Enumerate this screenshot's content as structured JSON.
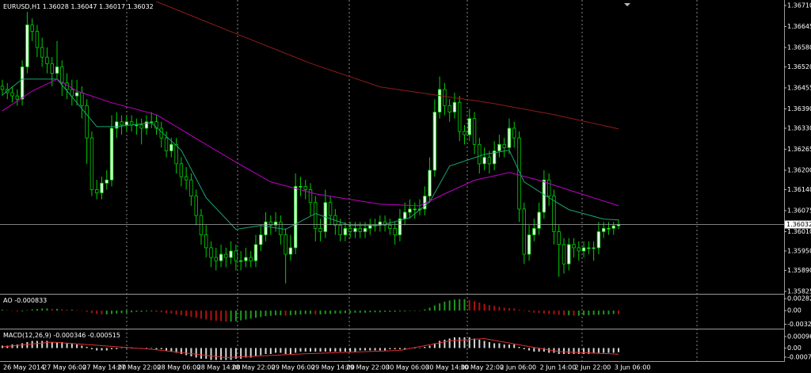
{
  "chart_data": {
    "type": "candlestick",
    "title": "EURUSD,H1",
    "categories": [
      "26 May 2014",
      null,
      null,
      null,
      null,
      null,
      null,
      null,
      "27 May 06:00",
      null,
      null,
      null,
      null,
      null,
      null,
      null,
      "27 May 14:00",
      null,
      null,
      null,
      null,
      null,
      null,
      "27 May 22:00",
      null,
      null,
      null,
      null,
      null,
      null,
      null,
      "28 May 06:00",
      null,
      null,
      null,
      null,
      null,
      null,
      null,
      "28 May 14:00",
      null,
      null,
      null,
      null,
      null,
      null,
      "28 May 22:00",
      null,
      null,
      null,
      null,
      null,
      null,
      null,
      "29 May 06:00",
      null,
      null,
      null,
      null,
      null,
      null,
      null,
      "29 May 14:00",
      null,
      null,
      null,
      null,
      null,
      null,
      "29 May 22:00",
      null,
      null,
      null,
      null,
      null,
      null,
      null,
      "30 May 06:00",
      null,
      null,
      null,
      null,
      null,
      null,
      null,
      "30 May 14:00",
      null,
      null,
      null,
      null,
      null,
      null,
      "30 May 22:00",
      null,
      null,
      null,
      null,
      null,
      null,
      null,
      "2 Jun 06:00",
      null,
      null,
      null,
      null,
      null,
      null,
      null,
      "2 Jun 14:00",
      null,
      null,
      null,
      null,
      null,
      null,
      "2 Jun 22:00",
      null,
      null,
      null,
      null,
      null,
      null,
      null,
      "3 Jun 06:00",
      null
    ],
    "candles": [
      [
        1.3646,
        1.3648,
        1.3643,
        1.3645
      ],
      [
        1.3645,
        1.3647,
        1.3642,
        1.3644
      ],
      [
        1.3644,
        1.3646,
        1.3641,
        1.3643
      ],
      [
        1.3643,
        1.3645,
        1.364,
        1.3642
      ],
      [
        1.3642,
        1.3654,
        1.364,
        1.3652
      ],
      [
        1.3652,
        1.3669,
        1.365,
        1.3665
      ],
      [
        1.3665,
        1.3667,
        1.366,
        1.3663
      ],
      [
        1.3663,
        1.3665,
        1.3655,
        1.3658
      ],
      [
        1.3658,
        1.3661,
        1.3652,
        1.3655
      ],
      [
        1.3655,
        1.3658,
        1.365,
        1.3653
      ],
      [
        1.3653,
        1.3655,
        1.3646,
        1.365
      ],
      [
        1.365,
        1.366,
        1.3648,
        1.3652
      ],
      [
        1.3652,
        1.3654,
        1.3643,
        1.3647
      ],
      [
        1.3647,
        1.365,
        1.3642,
        1.3645
      ],
      [
        1.3645,
        1.3648,
        1.364,
        1.3643
      ],
      [
        1.3643,
        1.3648,
        1.364,
        1.3644
      ],
      [
        1.3644,
        1.3646,
        1.3636,
        1.364
      ],
      [
        1.364,
        1.3642,
        1.3622,
        1.363
      ],
      [
        1.363,
        1.3632,
        1.3612,
        1.3614
      ],
      [
        1.3614,
        1.3617,
        1.3611,
        1.3613
      ],
      [
        1.3613,
        1.3618,
        1.3611,
        1.3616
      ],
      [
        1.3616,
        1.362,
        1.3614,
        1.3617
      ],
      [
        1.3617,
        1.3637,
        1.3615,
        1.3633
      ],
      [
        1.3633,
        1.3638,
        1.363,
        1.3635
      ],
      [
        1.3635,
        1.3637,
        1.3631,
        1.3634
      ],
      [
        1.3634,
        1.3637,
        1.3632,
        1.3635
      ],
      [
        1.3635,
        1.3637,
        1.3632,
        1.3634
      ],
      [
        1.3634,
        1.3636,
        1.3631,
        1.3634
      ],
      [
        1.3634,
        1.3636,
        1.3628,
        1.3633
      ],
      [
        1.3633,
        1.3637,
        1.3631,
        1.3635
      ],
      [
        1.3635,
        1.3638,
        1.3633,
        1.3635
      ],
      [
        1.3635,
        1.3637,
        1.3631,
        1.3633
      ],
      [
        1.3633,
        1.3635,
        1.3627,
        1.363
      ],
      [
        1.363,
        1.3632,
        1.3624,
        1.3626
      ],
      [
        1.3626,
        1.363,
        1.3624,
        1.3628
      ],
      [
        1.3628,
        1.363,
        1.3619,
        1.3622
      ],
      [
        1.3622,
        1.3624,
        1.3615,
        1.3618
      ],
      [
        1.3618,
        1.3621,
        1.3614,
        1.3617
      ],
      [
        1.3617,
        1.3619,
        1.3609,
        1.3612
      ],
      [
        1.3612,
        1.3614,
        1.3603,
        1.3606
      ],
      [
        1.3606,
        1.3608,
        1.3597,
        1.36
      ],
      [
        1.36,
        1.3603,
        1.3593,
        1.3596
      ],
      [
        1.3596,
        1.3598,
        1.359,
        1.3593
      ],
      [
        1.3593,
        1.3596,
        1.3589,
        1.3592
      ],
      [
        1.3592,
        1.3597,
        1.359,
        1.3594
      ],
      [
        1.3594,
        1.3596,
        1.359,
        1.3593
      ],
      [
        1.3593,
        1.3598,
        1.3591,
        1.3595
      ],
      [
        1.3595,
        1.3597,
        1.3589,
        1.3592
      ],
      [
        1.3592,
        1.3595,
        1.3589,
        1.3592
      ],
      [
        1.3592,
        1.3596,
        1.359,
        1.3593
      ],
      [
        1.3593,
        1.3595,
        1.359,
        1.3592
      ],
      [
        1.3592,
        1.36,
        1.359,
        1.3597
      ],
      [
        1.3597,
        1.3603,
        1.3595,
        1.36
      ],
      [
        1.36,
        1.3607,
        1.3598,
        1.3604
      ],
      [
        1.3604,
        1.3606,
        1.36,
        1.3603
      ],
      [
        1.3603,
        1.3607,
        1.3601,
        1.3604
      ],
      [
        1.3604,
        1.3606,
        1.3597,
        1.36
      ],
      [
        1.36,
        1.3602,
        1.3585,
        1.3594
      ],
      [
        1.3594,
        1.36,
        1.3592,
        1.3596
      ],
      [
        1.3596,
        1.3619,
        1.3594,
        1.3615
      ],
      [
        1.3615,
        1.3618,
        1.3612,
        1.3615
      ],
      [
        1.3615,
        1.3617,
        1.3611,
        1.3614
      ],
      [
        1.3614,
        1.3616,
        1.3606,
        1.361
      ],
      [
        1.361,
        1.3612,
        1.3598,
        1.3602
      ],
      [
        1.3602,
        1.3605,
        1.3598,
        1.3601
      ],
      [
        1.3601,
        1.3614,
        1.3599,
        1.361
      ],
      [
        1.361,
        1.3612,
        1.3603,
        1.3606
      ],
      [
        1.3606,
        1.3608,
        1.36,
        1.3603
      ],
      [
        1.3603,
        1.3605,
        1.3598,
        1.36
      ],
      [
        1.36,
        1.3604,
        1.3598,
        1.3602
      ],
      [
        1.3602,
        1.3604,
        1.3599,
        1.3601
      ],
      [
        1.3601,
        1.3604,
        1.3599,
        1.3602
      ],
      [
        1.3602,
        1.3604,
        1.3599,
        1.3601
      ],
      [
        1.3601,
        1.3604,
        1.3599,
        1.3602
      ],
      [
        1.3602,
        1.3605,
        1.36,
        1.3603
      ],
      [
        1.3603,
        1.3605,
        1.3601,
        1.3603
      ],
      [
        1.3603,
        1.3606,
        1.3601,
        1.3604
      ],
      [
        1.3604,
        1.3606,
        1.3601,
        1.3603
      ],
      [
        1.3603,
        1.3605,
        1.36,
        1.3602
      ],
      [
        1.3602,
        1.3604,
        1.3597,
        1.36
      ],
      [
        1.36,
        1.3608,
        1.3598,
        1.3605
      ],
      [
        1.3605,
        1.361,
        1.3603,
        1.3607
      ],
      [
        1.3607,
        1.3611,
        1.3605,
        1.3608
      ],
      [
        1.3608,
        1.361,
        1.3605,
        1.3608
      ],
      [
        1.3608,
        1.3611,
        1.3606,
        1.3608
      ],
      [
        1.3608,
        1.3615,
        1.3606,
        1.3612
      ],
      [
        1.3612,
        1.3624,
        1.361,
        1.362
      ],
      [
        1.362,
        1.3642,
        1.3618,
        1.3638
      ],
      [
        1.3638,
        1.3649,
        1.3636,
        1.3645
      ],
      [
        1.3645,
        1.3647,
        1.3637,
        1.364
      ],
      [
        1.364,
        1.3642,
        1.3635,
        1.3638
      ],
      [
        1.3638,
        1.3644,
        1.3636,
        1.3641
      ],
      [
        1.3641,
        1.3643,
        1.3629,
        1.3632
      ],
      [
        1.3632,
        1.3634,
        1.3628,
        1.3631
      ],
      [
        1.3631,
        1.3639,
        1.3629,
        1.3636
      ],
      [
        1.3636,
        1.3638,
        1.3625,
        1.3628
      ],
      [
        1.3628,
        1.363,
        1.3619,
        1.3622
      ],
      [
        1.3622,
        1.3627,
        1.362,
        1.3624
      ],
      [
        1.3624,
        1.3626,
        1.3619,
        1.3622
      ],
      [
        1.3622,
        1.3629,
        1.362,
        1.3626
      ],
      [
        1.3626,
        1.3631,
        1.3624,
        1.3628
      ],
      [
        1.3628,
        1.363,
        1.3624,
        1.3627
      ],
      [
        1.3627,
        1.3636,
        1.3625,
        1.3633
      ],
      [
        1.3633,
        1.3635,
        1.3627,
        1.363
      ],
      [
        1.363,
        1.3632,
        1.3604,
        1.3608
      ],
      [
        1.3608,
        1.361,
        1.3591,
        1.3594
      ],
      [
        1.3594,
        1.3603,
        1.3592,
        1.36
      ],
      [
        1.36,
        1.3605,
        1.3598,
        1.3602
      ],
      [
        1.3602,
        1.361,
        1.36,
        1.3607
      ],
      [
        1.3607,
        1.362,
        1.3605,
        1.3617
      ],
      [
        1.3617,
        1.3619,
        1.3609,
        1.3612
      ],
      [
        1.3612,
        1.3614,
        1.3597,
        1.3601
      ],
      [
        1.3601,
        1.3603,
        1.3587,
        1.3597
      ],
      [
        1.3597,
        1.3599,
        1.3588,
        1.3591
      ],
      [
        1.3591,
        1.3599,
        1.3589,
        1.3597
      ],
      [
        1.3597,
        1.3599,
        1.3593,
        1.3596
      ],
      [
        1.3596,
        1.3598,
        1.3592,
        1.3595
      ],
      [
        1.3595,
        1.3598,
        1.3593,
        1.3596
      ],
      [
        1.3596,
        1.3598,
        1.3594,
        1.3596
      ],
      [
        1.3596,
        1.3598,
        1.3592,
        1.3596
      ],
      [
        1.3596,
        1.3604,
        1.3594,
        1.3601
      ],
      [
        1.3601,
        1.3604,
        1.3599,
        1.3602
      ],
      [
        1.3602,
        1.3604,
        1.36,
        1.3602
      ],
      [
        1.3602,
        1.3604,
        1.36,
        1.36028
      ],
      [
        1.36028,
        1.36047,
        1.36017,
        1.36032
      ]
    ],
    "color": "#00d000",
    "up_fill": "#e8ffe8",
    "down_fill": "#000000",
    "ylim": [
      1.3582,
      1.36722
    ],
    "yticks": [
      {
        "value": 1.3671,
        "label": "1.36710"
      },
      1.36645,
      {
        "value": 1.3658,
        "label": "1.36580"
      },
      {
        "value": 1.3652,
        "label": "1.36520"
      },
      1.36455,
      {
        "value": 1.3639,
        "label": "1.36390"
      },
      {
        "value": 1.3633,
        "label": "1.36330"
      },
      1.36265,
      {
        "value": 1.362,
        "label": "1.36200"
      },
      {
        "value": 1.3614,
        "label": "1.36140"
      },
      1.36075,
      {
        "value": 1.3601,
        "label": "1.36010"
      },
      {
        "value": 1.3595,
        "label": "1.35950"
      },
      {
        "value": 1.3589,
        "label": "1.35890"
      },
      1.35825
    ],
    "series": [
      {
        "color": "#17a673",
        "x": [
          0,
          4,
          11,
          15,
          19,
          23,
          30,
          36,
          41,
          47,
          52,
          57,
          63,
          70,
          76,
          82,
          86,
          90,
          97,
          102,
          105,
          110,
          114,
          121,
          124
        ],
        "values": [
          1.36433,
          1.36482,
          1.36482,
          1.36409,
          1.36335,
          1.36335,
          1.36347,
          1.36262,
          1.36115,
          1.36017,
          1.36029,
          1.36017,
          1.36066,
          1.36029,
          1.36029,
          1.36053,
          1.36102,
          1.36213,
          1.36249,
          1.36262,
          1.36164,
          1.36115,
          1.36078,
          1.36049,
          1.36046
        ]
      },
      {
        "color": "#c000c8",
        "x": [
          0,
          6,
          11,
          15,
          22,
          31,
          39,
          47,
          54,
          63,
          76,
          84,
          89,
          95,
          102,
          108,
          114,
          124
        ],
        "values": [
          1.36384,
          1.36445,
          1.36482,
          1.36445,
          1.36409,
          1.36372,
          1.36298,
          1.36225,
          1.36164,
          1.36127,
          1.36095,
          1.3609,
          1.36127,
          1.36169,
          1.36193,
          1.36169,
          1.36139,
          1.3609
        ]
      },
      {
        "color": "#8e1c1c",
        "x": [
          31,
          46,
          62,
          76,
          87,
          98,
          111,
          124
        ],
        "values": [
          1.36722,
          1.36629,
          1.36531,
          1.36458,
          1.36433,
          1.36409,
          1.36372,
          1.36328
        ]
      }
    ],
    "ao": {
      "type": "bar",
      "name": "AO",
      "up_color": "#1f9a1f",
      "down_color": "#b01010",
      "ylim": [
        -0.0037,
        0.0034
      ],
      "yticks": [
        0.002821,
        {
          "value": 0,
          "label": "0.00"
        },
        -0.003208
      ],
      "values": [
        0.0002,
        0.0001,
        0,
        -0.0002,
        -0.0002,
        0.0001,
        0.0003,
        0.0004,
        0.0005,
        0.0005,
        0.0004,
        0.0004,
        0.0003,
        0.0002,
        0.0002,
        0.0001,
        -0.0001,
        -0.0003,
        -0.0006,
        -0.0008,
        -0.0009,
        -0.0009,
        -0.0008,
        -0.0007,
        -0.0006,
        -0.0005,
        -0.0004,
        -0.0003,
        -0.0003,
        -0.0002,
        -0.0002,
        -0.0003,
        -0.0004,
        -0.0006,
        -0.0007,
        -0.0009,
        -0.0011,
        -0.0013,
        -0.0015,
        -0.0017,
        -0.0019,
        -0.0021,
        -0.0023,
        -0.0024,
        -0.0025,
        -0.0026,
        -0.0026,
        -0.0025,
        -0.0023,
        -0.0021,
        -0.0019,
        -0.0017,
        -0.0015,
        -0.0013,
        -0.0012,
        -0.0011,
        -0.0011,
        -0.0012,
        -0.0011,
        -0.001,
        -0.0009,
        -0.0008,
        -0.0008,
        -0.0009,
        -0.0009,
        -0.0008,
        -0.0008,
        -0.0007,
        -0.0007,
        -0.0006,
        -0.0006,
        -0.0005,
        -0.0005,
        -0.0005,
        -0.0004,
        -0.0004,
        -0.0004,
        -0.0003,
        -0.0003,
        -0.0003,
        -0.0002,
        -0.0002,
        -0.0001,
        -0.0001,
        0,
        0.0003,
        0.0007,
        0.0012,
        0.0017,
        0.0021,
        0.0024,
        0.0026,
        0.0027,
        0.0027,
        0.0025,
        0.0022,
        0.0019,
        0.0016,
        0.0013,
        0.0011,
        0.0009,
        0.0007,
        0.0006,
        0.0005,
        0.0002,
        -0.0001,
        -0.0003,
        -0.0005,
        -0.0006,
        -0.0007,
        -0.0008,
        -0.0009,
        -0.001,
        -0.0011,
        -0.0011,
        -0.0012,
        -0.0012,
        -0.0011,
        -0.0011,
        -0.001,
        -0.001,
        -0.0009,
        -0.0009,
        -0.0008,
        -0.000833
      ]
    },
    "macd": {
      "type": "bar",
      "name": "MACD(12,26,9)",
      "color": "#d8d8d8",
      "ylim": [
        -0.0011,
        0.00143
      ],
      "yticks": [
        0.000967,
        {
          "value": 0,
          "label": "0.00"
        },
        -0.000764
      ],
      "values": [
        0.0002,
        0.0002,
        0.0003,
        0.0003,
        0.0004,
        0.0005,
        0.0006,
        0.0006,
        0.0006,
        0.0006,
        0.0005,
        0.0005,
        0.0005,
        0.0004,
        0.0004,
        0.0003,
        0.0002,
        0.0001,
        -0.0001,
        -0.0002,
        -0.0002,
        -0.0002,
        -0.0001,
        -0.0001,
        0,
        0,
        0,
        0,
        0,
        0,
        0,
        -0.0001,
        -0.0001,
        -0.0002,
        -0.0003,
        -0.0004,
        -0.0005,
        -0.0006,
        -0.0007,
        -0.0008,
        -0.0009,
        -0.0009,
        -0.001,
        -0.001,
        -0.001,
        -0.001,
        -0.001,
        -0.0009,
        -0.0009,
        -0.0008,
        -0.0008,
        -0.0007,
        -0.0006,
        -0.0005,
        -0.0005,
        -0.0004,
        -0.0004,
        -0.0005,
        -0.0005,
        -0.0004,
        -0.0003,
        -0.0003,
        -0.0003,
        -0.0003,
        -0.0003,
        -0.0003,
        -0.0003,
        -0.0003,
        -0.0003,
        -0.0003,
        -0.0003,
        -0.0003,
        -0.0002,
        -0.0002,
        -0.0002,
        -0.0002,
        -0.0002,
        -0.0002,
        -0.0001,
        -0.0001,
        -0.0001,
        -0.0001,
        0,
        0,
        0,
        0.0001,
        0.0002,
        0.0004,
        0.0006,
        0.0007,
        0.0008,
        0.0009,
        0.0009,
        0.0009,
        0.0009,
        0.0008,
        0.0007,
        0.0006,
        0.0005,
        0.0004,
        0.0004,
        0.0003,
        0.0003,
        0.0003,
        0.0001,
        -0.0001,
        -0.0002,
        -0.0003,
        -0.0003,
        -0.0003,
        -0.0004,
        -0.0004,
        -0.0005,
        -0.0005,
        -0.0005,
        -0.0005,
        -0.0005,
        -0.0005,
        -0.0005,
        -0.0004,
        -0.0004,
        -0.0004,
        -0.0004,
        -0.0004,
        -0.000346
      ],
      "signal": {
        "color": "#e03030",
        "x": [
          0,
          10,
          20,
          30,
          45,
          60,
          80,
          90,
          97,
          105,
          112,
          124
        ],
        "values": [
          0.0001,
          0.0005,
          0.0002,
          -0.0001,
          -0.0008,
          -0.0005,
          -0.0002,
          0.0006,
          0.0008,
          0.0002,
          -0.0003,
          -0.000515
        ]
      }
    }
  }
}
